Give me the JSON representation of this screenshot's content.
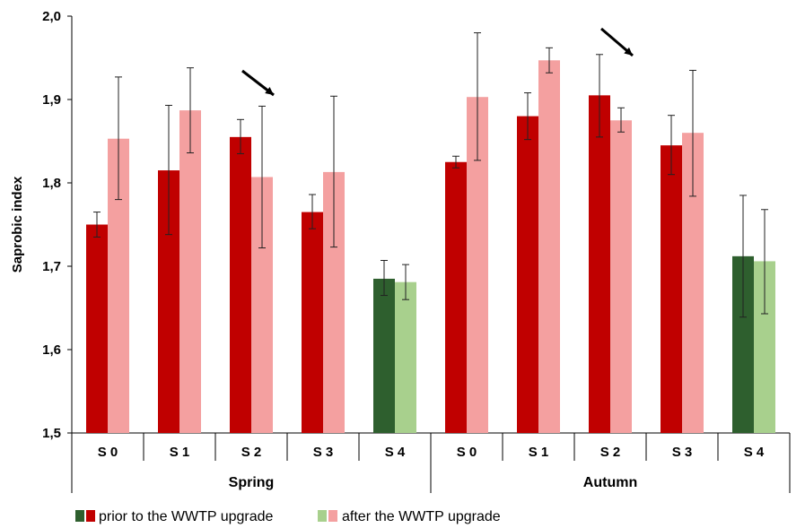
{
  "chart_data": {
    "type": "bar",
    "ylabel": "Saprobic index",
    "ylim": [
      1.5,
      2.0
    ],
    "yticks": [
      "1,5",
      "1,6",
      "1,7",
      "1,8",
      "1,9",
      "2,0"
    ],
    "grid": false,
    "groups": [
      {
        "label": "Spring",
        "categories": [
          "S 0",
          "S 1",
          "S 2",
          "S 3",
          "S 4"
        ],
        "prior": [
          1.75,
          1.815,
          1.855,
          1.765,
          1.685
        ],
        "prior_err": [
          [
            1.735,
            1.765
          ],
          [
            1.738,
            1.893
          ],
          [
            1.835,
            1.876
          ],
          [
            1.745,
            1.786
          ],
          [
            1.665,
            1.707
          ]
        ],
        "after": [
          1.853,
          1.887,
          1.807,
          1.813,
          1.681
        ],
        "after_err": [
          [
            1.78,
            1.927
          ],
          [
            1.836,
            1.938
          ],
          [
            1.722,
            1.892
          ],
          [
            1.723,
            1.904
          ],
          [
            1.66,
            1.702
          ]
        ],
        "arrow_at": "S 2"
      },
      {
        "label": "Autumn",
        "categories": [
          "S 0",
          "S 1",
          "S 2",
          "S 3",
          "S 4"
        ],
        "prior": [
          1.825,
          1.88,
          1.905,
          1.845,
          1.712
        ],
        "prior_err": [
          [
            1.818,
            1.832
          ],
          [
            1.852,
            1.908
          ],
          [
            1.855,
            1.954
          ],
          [
            1.81,
            1.881
          ],
          [
            1.639,
            1.785
          ]
        ],
        "after": [
          1.903,
          1.947,
          1.875,
          1.86,
          1.706
        ],
        "after_err": [
          [
            1.827,
            1.98
          ],
          [
            1.932,
            1.962
          ],
          [
            1.861,
            1.89
          ],
          [
            1.784,
            1.935
          ],
          [
            1.643,
            1.768
          ]
        ],
        "arrow_at": "S 2"
      }
    ],
    "series": [
      {
        "name": "prior to the WWTP upgrade",
        "color": "#c00000",
        "reference_color": "#2e5f2e"
      },
      {
        "name": "after the WWTP upgrade",
        "color": "#f4a0a0",
        "reference_color": "#a8d08d"
      }
    ],
    "reference_category": "S 4",
    "legend_position": "bottom-left"
  }
}
